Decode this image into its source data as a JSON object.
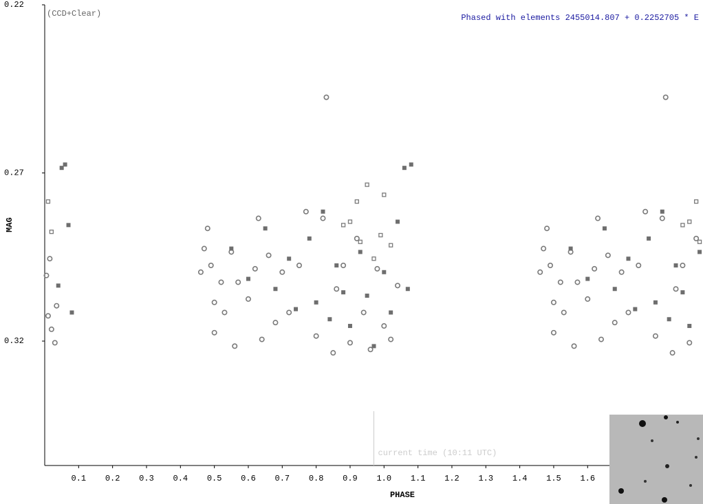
{
  "chart_data": {
    "type": "scatter",
    "title": "Phased with elements 2455014.807 + 0.2252705 * E",
    "subtitle": "(CCD+Clear)",
    "x_label": "PHASE",
    "y_label": "MAG",
    "annotation": "current time (10:11 UTC)",
    "annotation_x": 0.97,
    "xlim": [
      0,
      1.94
    ],
    "ylim": [
      0.357,
      0.22
    ],
    "xticks": [
      0.1,
      0.2,
      0.3,
      0.4,
      0.5,
      0.6,
      0.7,
      0.8,
      0.9,
      {
        "value": 1,
        "label": "1.0"
      },
      1.1,
      1.2,
      1.3,
      1.4,
      1.5,
      1.6
    ],
    "yticks": [
      0.22,
      0.27,
      0.32
    ],
    "series": [
      {
        "marker": "circle-open",
        "color": "#7a7a7a",
        "x": [
          0.005,
          0.01,
          0.015,
          0.02,
          0.03,
          0.035,
          0.46,
          0.47,
          0.48,
          0.49,
          0.5,
          0.5,
          0.52,
          0.53,
          0.55,
          0.56,
          0.57,
          0.6,
          0.62,
          0.63,
          0.64,
          0.66,
          0.68,
          0.7,
          0.72,
          0.75,
          0.77,
          0.8,
          0.82,
          0.83,
          0.85,
          0.86,
          0.88,
          0.9,
          0.92,
          0.94,
          0.96,
          0.98,
          1.0,
          1.02,
          1.04,
          1.46,
          1.47,
          1.48,
          1.49,
          1.5,
          1.5,
          1.52,
          1.53,
          1.55,
          1.56,
          1.57,
          1.6,
          1.62,
          1.63,
          1.64,
          1.66,
          1.68,
          1.7,
          1.72,
          1.75,
          1.77,
          1.8,
          1.82,
          1.83,
          1.85,
          1.86,
          1.88,
          1.9,
          1.92
        ],
        "y": [
          0.3005,
          0.3125,
          0.2955,
          0.3165,
          0.3205,
          0.3095,
          0.2995,
          0.2925,
          0.2865,
          0.2975,
          0.3085,
          0.3175,
          0.3025,
          0.3115,
          0.2935,
          0.3215,
          0.3025,
          0.3075,
          0.2985,
          0.2835,
          0.3195,
          0.2945,
          0.3145,
          0.2995,
          0.3115,
          0.2975,
          0.2815,
          0.3185,
          0.2835,
          0.2475,
          0.3235,
          0.3045,
          0.2975,
          0.3205,
          0.2895,
          0.3115,
          0.3225,
          0.2985,
          0.3155,
          0.3195,
          0.3035,
          0.2995,
          0.2925,
          0.2865,
          0.2975,
          0.3085,
          0.3175,
          0.3025,
          0.3115,
          0.2935,
          0.3215,
          0.3025,
          0.3075,
          0.2985,
          0.2835,
          0.3195,
          0.2945,
          0.3145,
          0.2995,
          0.3115,
          0.2975,
          0.2815,
          0.3185,
          0.2835,
          0.2475,
          0.3235,
          0.3045,
          0.2975,
          0.3205,
          0.2895
        ]
      },
      {
        "marker": "square",
        "color": "#6e6e6e",
        "x": [
          0.04,
          0.05,
          0.06,
          0.07,
          0.08,
          0.55,
          0.6,
          0.65,
          0.68,
          0.72,
          0.74,
          0.78,
          0.8,
          0.82,
          0.84,
          0.86,
          0.88,
          0.9,
          0.93,
          0.95,
          0.97,
          1.0,
          1.02,
          1.04,
          1.06,
          1.07,
          1.08,
          1.55,
          1.6,
          1.65,
          1.68,
          1.72,
          1.74,
          1.78,
          1.8,
          1.82,
          1.84,
          1.86,
          1.88,
          1.9,
          1.93
        ],
        "y": [
          0.3035,
          0.2685,
          0.2675,
          0.2855,
          0.3115,
          0.2925,
          0.3015,
          0.2865,
          0.3045,
          0.2955,
          0.3105,
          0.2895,
          0.3085,
          0.2815,
          0.3135,
          0.2975,
          0.3055,
          0.3155,
          0.2935,
          0.3065,
          0.3215,
          0.2995,
          0.3115,
          0.2845,
          0.2685,
          0.3045,
          0.2675,
          0.2925,
          0.3015,
          0.2865,
          0.3045,
          0.2955,
          0.3105,
          0.2895,
          0.3085,
          0.2815,
          0.3135,
          0.2975,
          0.3055,
          0.3155,
          0.2935
        ]
      },
      {
        "marker": "square-open",
        "color": "#7a7a7a",
        "x": [
          0.01,
          0.02,
          0.88,
          0.9,
          0.92,
          0.93,
          0.95,
          0.97,
          0.99,
          1.0,
          1.02,
          1.88,
          1.9,
          1.92,
          1.93
        ],
        "y": [
          0.2785,
          0.2875,
          0.2855,
          0.2845,
          0.2785,
          0.2905,
          0.2735,
          0.2955,
          0.2885,
          0.2765,
          0.2915,
          0.2855,
          0.2845,
          0.2785,
          0.2905
        ]
      }
    ]
  }
}
